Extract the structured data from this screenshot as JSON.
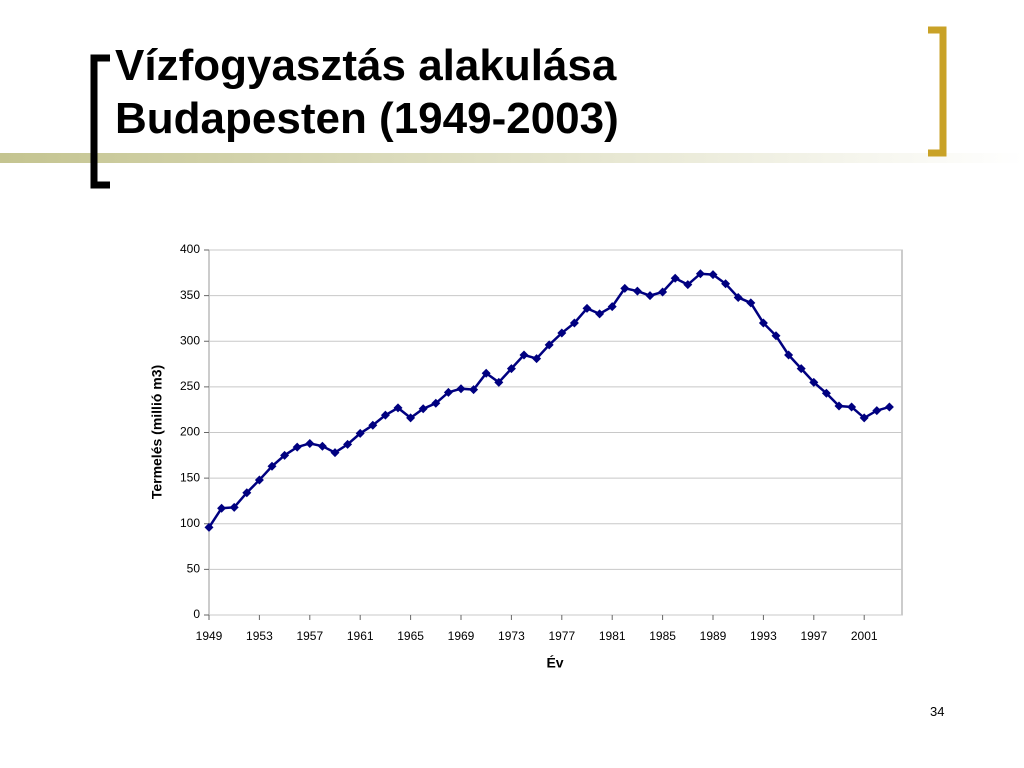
{
  "chart_data": {
    "type": "line",
    "title": "Vízfogyasztás alakulása Budapesten (1949-2003)",
    "x_label": "Év",
    "y_label": "Termelés (millió m3)",
    "x": [
      1949,
      1950,
      1951,
      1952,
      1953,
      1954,
      1955,
      1956,
      1957,
      1958,
      1959,
      1960,
      1961,
      1962,
      1963,
      1964,
      1965,
      1966,
      1967,
      1968,
      1969,
      1970,
      1971,
      1972,
      1973,
      1974,
      1975,
      1976,
      1977,
      1978,
      1979,
      1980,
      1981,
      1982,
      1983,
      1984,
      1985,
      1986,
      1987,
      1988,
      1989,
      1990,
      1991,
      1992,
      1993,
      1994,
      1995,
      1996,
      1997,
      1998,
      1999,
      2000,
      2001,
      2002,
      2003
    ],
    "series": [
      {
        "color": "#000080",
        "values": [
          96,
          117,
          118,
          134,
          148,
          163,
          175,
          184,
          188,
          185,
          178,
          187,
          199,
          208,
          219,
          227,
          216,
          226,
          232,
          244,
          248,
          247,
          265,
          255,
          270,
          285,
          281,
          296,
          309,
          320,
          336,
          330,
          338,
          358,
          355,
          350,
          354,
          369,
          362,
          374,
          373,
          363,
          348,
          342,
          320,
          306,
          285,
          270,
          255,
          243,
          229,
          228,
          216,
          224,
          228
        ]
      }
    ],
    "xlim": [
      1949,
      2004
    ],
    "xticks": [
      1949,
      1953,
      1957,
      1961,
      1965,
      1969,
      1973,
      1977,
      1981,
      1985,
      1989,
      1993,
      1997,
      2001
    ],
    "ylim": [
      0,
      400
    ],
    "yticks": [
      0,
      50,
      100,
      150,
      200,
      250,
      300,
      350,
      400
    ],
    "grid": true
  },
  "slide_number": "34"
}
